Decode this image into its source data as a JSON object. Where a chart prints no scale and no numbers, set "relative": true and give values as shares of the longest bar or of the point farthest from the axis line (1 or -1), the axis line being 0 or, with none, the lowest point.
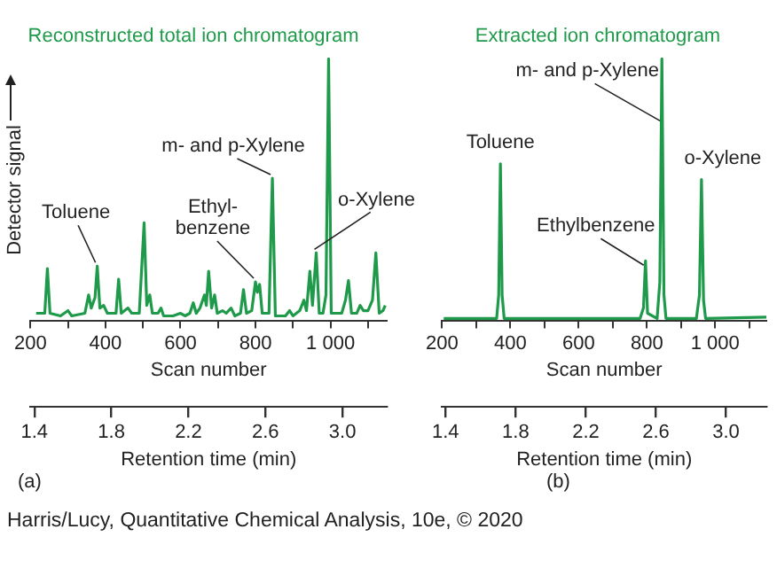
{
  "chart_data": [
    {
      "type": "line",
      "title": "Reconstructed total ion chromatogram",
      "xlabel": "Scan number",
      "ylabel": "Detector signal",
      "x2label": "Retention time (min)",
      "relative": true,
      "grid": false,
      "legend": false,
      "marker": "none",
      "xlim": [
        200,
        1150
      ],
      "xticks": [
        200,
        {
          "value": 300,
          "label": null
        },
        400,
        {
          "value": 500,
          "label": null
        },
        600,
        {
          "value": 700,
          "label": null
        },
        800,
        {
          "value": 900,
          "label": null
        },
        {
          "value": 1000,
          "label": "1 000"
        },
        {
          "value": 1100,
          "label": null
        }
      ],
      "x2lim": [
        1.38,
        3.23
      ],
      "x2ticks": [
        1.4,
        1.8,
        2.2,
        2.6,
        {
          "value": 3.0,
          "label": "3.0"
        }
      ],
      "series": [
        {
          "color": "#1e9a4a",
          "x": [
            215,
            238,
            245,
            252,
            280,
            300,
            310,
            345,
            355,
            362,
            372,
            378,
            385,
            395,
            405,
            428,
            435,
            442,
            460,
            470,
            490,
            503,
            510,
            518,
            525,
            540,
            548,
            555,
            580,
            600,
            612,
            625,
            634,
            642,
            652,
            664,
            669,
            675,
            683,
            691,
            698,
            712,
            722,
            735,
            745,
            760,
            768,
            776,
            790,
            800,
            805,
            811,
            818,
            836,
            845,
            853,
            880,
            891,
            900,
            918,
            929,
            936,
            945,
            952,
            962,
            970,
            980,
            988,
            995,
            1002,
            1030,
            1040,
            1048,
            1056,
            1070,
            1079,
            1088,
            1100,
            1112,
            1121,
            1130,
            1140,
            1146
          ],
          "values": [
            0.03,
            0.03,
            0.2,
            0.03,
            0.02,
            0.04,
            0.02,
            0.03,
            0.1,
            0.05,
            0.09,
            0.21,
            0.05,
            0.06,
            0.03,
            0.03,
            0.16,
            0.03,
            0.05,
            0.03,
            0.03,
            0.375,
            0.06,
            0.1,
            0.03,
            0.03,
            0.05,
            0.02,
            0.02,
            0.03,
            0.02,
            0.03,
            0.07,
            0.03,
            0.05,
            0.1,
            0.06,
            0.19,
            0.05,
            0.1,
            0.03,
            0.04,
            0.03,
            0.05,
            0.02,
            0.03,
            0.12,
            0.03,
            0.04,
            0.15,
            0.11,
            0.14,
            0.03,
            0.03,
            0.545,
            0.02,
            0.02,
            0.04,
            0.02,
            0.04,
            0.08,
            0.04,
            0.19,
            0.06,
            0.26,
            0.03,
            0.03,
            0.1,
            1.0,
            0.03,
            0.03,
            0.08,
            0.155,
            0.03,
            0.03,
            0.06,
            0.04,
            0.04,
            0.08,
            0.26,
            0.03,
            0.04,
            0.06
          ]
        }
      ],
      "annotations": [
        {
          "text": "Toluene",
          "x": 378,
          "y": 0.21
        },
        {
          "text": "m- and p-Xylene",
          "x": 845,
          "y": 0.545
        },
        {
          "text": "Ethyl-\nbenzene",
          "x": 800,
          "y": 0.15
        },
        {
          "text": "o-Xylene",
          "x": 962,
          "y": 0.26
        },
        "(a)",
        "Harris/Lucy, Quantitative Chemical Analysis, 10e, © 2020"
      ]
    },
    {
      "type": "line",
      "title": "Extracted ion chromatogram",
      "xlabel": "Scan number",
      "x2label": "Retention time (min)",
      "relative": true,
      "grid": false,
      "legend": false,
      "marker": "none",
      "xlim": [
        200,
        1150
      ],
      "xticks": [
        200,
        {
          "value": 300,
          "label": null
        },
        400,
        {
          "value": 500,
          "label": null
        },
        600,
        {
          "value": 700,
          "label": null
        },
        800,
        {
          "value": 900,
          "label": null
        },
        {
          "value": 1000,
          "label": "1 000"
        },
        {
          "value": 1100,
          "label": null
        }
      ],
      "x2lim": [
        1.38,
        3.23
      ],
      "x2ticks": [
        1.4,
        1.8,
        2.2,
        2.6,
        {
          "value": 3.0,
          "label": "3.0"
        }
      ],
      "series": [
        {
          "color": "#1e9a4a",
          "x": [
            205,
            360,
            366,
            371,
            376,
            382,
            780,
            790,
            796,
            802,
            830,
            838,
            844,
            850,
            856,
            945,
            954,
            960,
            966,
            972,
            1150
          ],
          "values": [
            0.01,
            0.01,
            0.1,
            0.6,
            0.1,
            0.01,
            0.01,
            0.05,
            0.23,
            0.03,
            0.01,
            0.15,
            1.0,
            0.1,
            0.01,
            0.01,
            0.1,
            0.54,
            0.08,
            0.01,
            0.015
          ]
        }
      ],
      "annotations": [
        {
          "text": "Toluene",
          "x": 371,
          "y": 0.6
        },
        {
          "text": "m- and p-Xylene",
          "x": 844,
          "y": 0.75
        },
        {
          "text": "Ethylbenzene",
          "x": 796,
          "y": 0.2
        },
        {
          "text": "o-Xylene",
          "x": 960,
          "y": 0.54
        },
        "(b)"
      ]
    }
  ]
}
